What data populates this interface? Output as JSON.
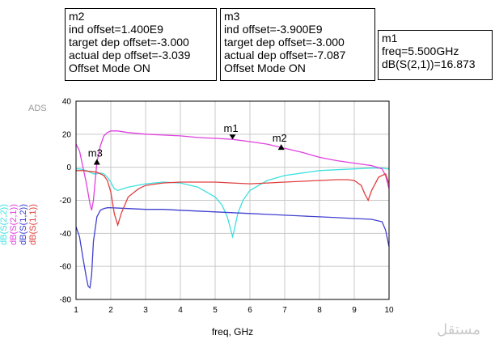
{
  "markers": {
    "m2": {
      "lines": [
        "m2",
        "ind offset=1.400E9",
        "target dep offset=-3.000",
        "actual dep offset=-3.039",
        "Offset Mode ON"
      ]
    },
    "m3": {
      "lines": [
        "m3",
        "ind offset=-3.900E9",
        "target dep offset=-3.000",
        "actual dep offset=-7.087",
        "Offset Mode ON"
      ]
    },
    "m1": {
      "lines": [
        "m1",
        "freq=5.500GHz",
        "dB(S(2,1))=16.873"
      ]
    }
  },
  "ads_label": "ADS",
  "watermark": "مستقل",
  "chart_data": {
    "type": "line",
    "xlabel": "freq, GHz",
    "ylabel_series": [
      "dB(S(2,2))",
      "dB(S(2,1))",
      "dB(S(1,2))",
      "dB(S(1,1))"
    ],
    "xlim": [
      1,
      10
    ],
    "ylim": [
      -80,
      40
    ],
    "xticks": [
      1,
      2,
      3,
      4,
      5,
      6,
      7,
      8,
      9,
      10
    ],
    "yticks": [
      40,
      20,
      0,
      -20,
      -40,
      -60,
      -80
    ],
    "grid": true,
    "series": [
      {
        "name": "dB(S(2,2))",
        "color": "#40e0e0",
        "x": [
          1.0,
          1.1,
          1.2,
          1.3,
          1.4,
          1.5,
          1.6,
          1.7,
          1.8,
          1.9,
          2.0,
          2.1,
          2.2,
          2.5,
          3.0,
          3.5,
          4.0,
          4.5,
          5.0,
          5.2,
          5.35,
          5.45,
          5.5,
          5.55,
          5.65,
          5.8,
          6.0,
          6.5,
          7.0,
          7.5,
          8.0,
          8.5,
          9.0,
          9.5,
          9.8,
          9.95,
          10.0
        ],
        "y": [
          -1,
          -1,
          -1.5,
          -2,
          -3,
          -4,
          -4,
          -3.5,
          -4,
          -6,
          -9,
          -13,
          -14,
          -12,
          -10,
          -9,
          -9.5,
          -12,
          -18,
          -23,
          -30,
          -38,
          -42,
          -38,
          -28,
          -20,
          -14,
          -8,
          -5,
          -3.5,
          -2,
          -1.5,
          -1,
          -0.5,
          -0.5,
          -1,
          -1
        ]
      },
      {
        "name": "dB(S(2,1))",
        "color": "#e040e0",
        "x": [
          1.0,
          1.1,
          1.2,
          1.3,
          1.4,
          1.45,
          1.5,
          1.6,
          1.7,
          1.8,
          1.9,
          2.0,
          2.2,
          2.5,
          3.0,
          3.5,
          4.0,
          4.5,
          5.0,
          5.5,
          6.0,
          6.5,
          6.9,
          7.5,
          8.0,
          8.5,
          9.0,
          9.5,
          9.8,
          9.9,
          10.0
        ],
        "y": [
          14,
          10,
          0,
          -10,
          -22,
          -26,
          -20,
          3,
          13,
          19,
          21,
          22,
          22,
          21,
          20,
          19.5,
          19,
          18,
          17.5,
          16.9,
          15.5,
          14,
          12,
          9,
          6,
          4,
          2.5,
          1,
          -1,
          -5,
          -13
        ]
      },
      {
        "name": "dB(S(1,2))",
        "color": "#4040d0",
        "x": [
          1.0,
          1.1,
          1.2,
          1.3,
          1.35,
          1.4,
          1.45,
          1.5,
          1.6,
          1.7,
          1.8,
          1.9,
          2.0,
          2.5,
          3.0,
          3.5,
          4.0,
          4.5,
          5.0,
          5.5,
          6.0,
          6.5,
          7.0,
          7.5,
          8.0,
          8.5,
          9.0,
          9.5,
          9.8,
          9.9,
          10.0
        ],
        "y": [
          -36,
          -42,
          -55,
          -67,
          -72,
          -73,
          -65,
          -45,
          -30,
          -26,
          -25,
          -24.5,
          -24.5,
          -25,
          -25.5,
          -25.5,
          -26,
          -26.5,
          -27,
          -27.5,
          -28,
          -28.5,
          -29,
          -29.5,
          -30,
          -30.5,
          -31,
          -31.5,
          -33,
          -38,
          -48
        ]
      },
      {
        "name": "dB(S(1,1))",
        "color": "#e04040",
        "x": [
          1.0,
          1.2,
          1.4,
          1.6,
          1.8,
          1.9,
          2.0,
          2.1,
          2.2,
          2.3,
          2.5,
          2.8,
          3.0,
          3.5,
          4.0,
          4.5,
          5.0,
          5.5,
          6.0,
          6.5,
          7.0,
          7.5,
          8.0,
          8.5,
          8.8,
          9.0,
          9.2,
          9.3,
          9.4,
          9.5,
          9.7,
          9.9,
          10.0
        ],
        "y": [
          -2,
          -2,
          -2.5,
          -3,
          -5,
          -8,
          -15,
          -28,
          -35,
          -28,
          -18,
          -13,
          -11,
          -9.5,
          -9,
          -9,
          -9,
          -9.5,
          -10,
          -9.5,
          -9,
          -8.5,
          -8,
          -7.5,
          -7.5,
          -8,
          -11,
          -16,
          -20,
          -14,
          -6,
          -4,
          -10
        ]
      }
    ],
    "marker_points": [
      {
        "name": "m1",
        "x": 5.5,
        "y": 16.873,
        "dir": "down"
      },
      {
        "name": "m2",
        "x": 6.9,
        "y": 12,
        "dir": "up"
      },
      {
        "name": "m3",
        "x": 1.6,
        "y": 3,
        "dir": "up"
      }
    ]
  }
}
